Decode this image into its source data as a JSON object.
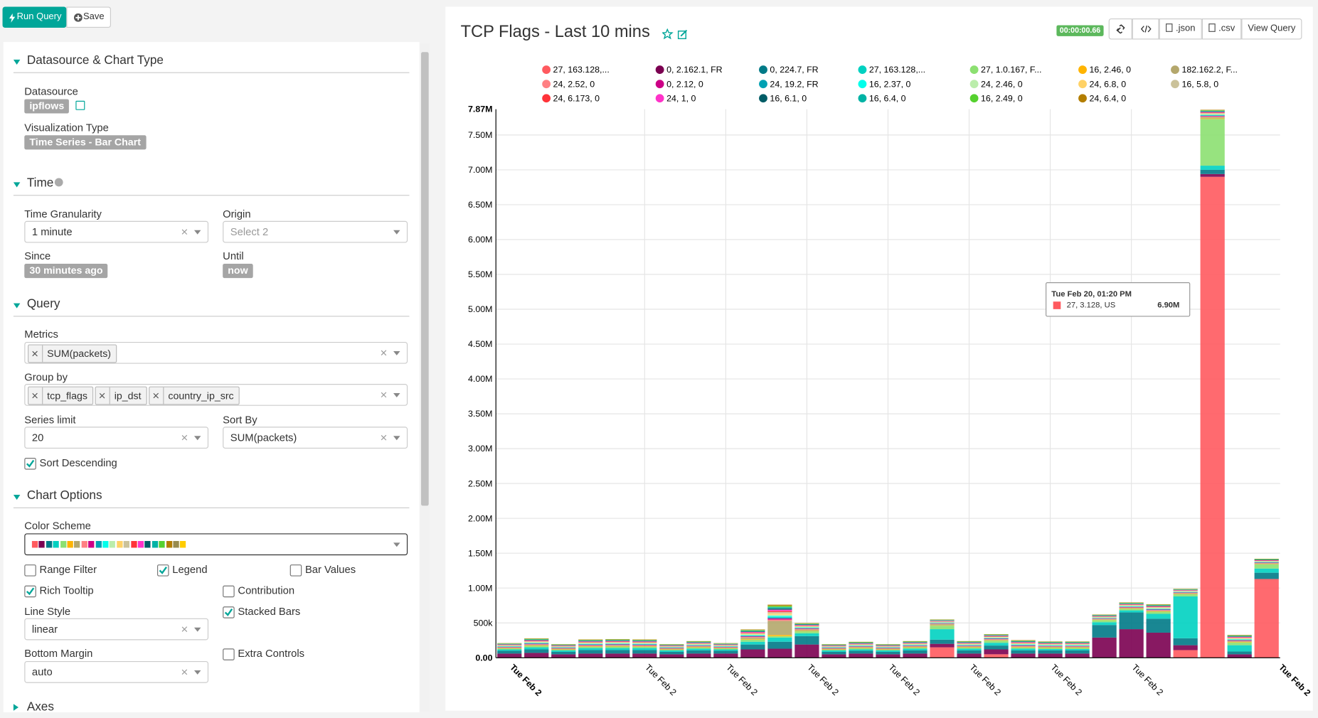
{
  "ui": {
    "toolbar": {
      "run": "Run Query",
      "save": "Save"
    },
    "datasource_section": {
      "title": "Datasource & Chart Type",
      "datasource_label": "Datasource",
      "datasource": "ipflows",
      "viz_label": "Visualization Type",
      "viz": "Time Series - Bar Chart"
    },
    "time_section": {
      "title": "Time",
      "granularity_label": "Time Granularity",
      "granularity": "1 minute",
      "origin_label": "Origin",
      "origin": "Select 2",
      "since_label": "Since",
      "since": "30 minutes ago",
      "until_label": "Until",
      "until": "now"
    },
    "query_section": {
      "title": "Query",
      "metrics_label": "Metrics",
      "metrics": [
        "SUM(packets)"
      ],
      "groupby_label": "Group by",
      "groupby": [
        "tcp_flags",
        "ip_dst",
        "country_ip_src"
      ],
      "series_limit_label": "Series limit",
      "series_limit": "20",
      "sort_by_label": "Sort By",
      "sort_by": "SUM(packets)",
      "sort_desc": {
        "label": "Sort Descending",
        "checked": true
      }
    },
    "options_section": {
      "title": "Chart Options",
      "color_scheme_label": "Color Scheme",
      "color_scheme": [
        "#ff5a5f",
        "#7b0051",
        "#007A87",
        "#00d1c1",
        "#8ce071",
        "#ffb400",
        "#b4a76c",
        "#ff8083",
        "#cc0086",
        "#00a1b3",
        "#00ffeb",
        "#bbedab",
        "#ffd266",
        "#cbc29a",
        "#ff3339",
        "#ff33c9",
        "#005c66",
        "#00b3a5",
        "#55d12e",
        "#b37e00",
        "#988b4e",
        "#ffcc00"
      ],
      "checkboxes": [
        {
          "label": "Range Filter",
          "checked": false
        },
        {
          "label": "Legend",
          "checked": true
        },
        {
          "label": "Bar Values",
          "checked": false
        },
        {
          "label": "Rich Tooltip",
          "checked": true
        },
        {
          "label": "Contribution",
          "checked": false
        },
        {
          "label": "Stacked Bars",
          "checked": true
        },
        {
          "label": "Extra Controls",
          "checked": false
        }
      ],
      "line_style_label": "Line Style",
      "line_style": "linear",
      "bottom_margin_label": "Bottom Margin",
      "bottom_margin": "auto"
    },
    "axes_section": {
      "title": "Axes"
    }
  },
  "header": {
    "title": "TCP Flags - Last 10 mins",
    "timer": "00:00:00.66",
    "buttons": [
      ".json",
      ".csv",
      "View Query"
    ]
  },
  "chart_data": {
    "type": "stacked_bar",
    "categories": [
      "Tue Feb 2",
      null,
      null,
      null,
      null,
      "Tue Feb 2",
      null,
      null,
      "Tue Feb 2",
      null,
      null,
      "Tue Feb 2",
      null,
      null,
      "Tue Feb 2",
      null,
      null,
      "Tue Feb 2",
      null,
      null,
      "Tue Feb 2",
      null,
      null,
      "Tue Feb 2",
      null,
      null,
      null,
      null,
      "Tue Feb 2"
    ],
    "ylim": [
      0,
      7870000
    ],
    "yticks": [
      {
        "value": 0,
        "label": "0.00"
      },
      {
        "value": 500000,
        "label": "500k"
      },
      {
        "value": 1000000,
        "label": "1.00M"
      },
      {
        "value": 1500000,
        "label": "1.50M"
      },
      {
        "value": 2000000,
        "label": "2.00M"
      },
      {
        "value": 2500000,
        "label": "2.50M"
      },
      {
        "value": 3000000,
        "label": "3.00M"
      },
      {
        "value": 3500000,
        "label": "3.50M"
      },
      {
        "value": 4000000,
        "label": "4.00M"
      },
      {
        "value": 4500000,
        "label": "4.50M"
      },
      {
        "value": 5000000,
        "label": "5.00M"
      },
      {
        "value": 5500000,
        "label": "5.50M"
      },
      {
        "value": 6000000,
        "label": "6.00M"
      },
      {
        "value": 6500000,
        "label": "6.50M"
      },
      {
        "value": 7000000,
        "label": "7.00M"
      },
      {
        "value": 7500000,
        "label": "7.50M"
      },
      {
        "value": 7870000,
        "label": "7.87M"
      }
    ],
    "grid": true,
    "tooltip": {
      "title": "Tue Feb 20, 01:20 PM",
      "name": "27, 3.128, US",
      "value": "6.90M"
    },
    "series": [
      {
        "name": "27, 163.128,...",
        "color": "#ff5a5f",
        "values": [
          0,
          0,
          0,
          0,
          0,
          0,
          0,
          0,
          0,
          0,
          0,
          0,
          0,
          0,
          0,
          0,
          150000,
          0,
          50000,
          0,
          0,
          0,
          0,
          0,
          0,
          110000,
          6900000,
          0,
          1130000
        ]
      },
      {
        "name": "0, 2.162.1, FR",
        "color": "#7b0051",
        "values": [
          60000,
          70000,
          50000,
          60000,
          60000,
          60000,
          50000,
          60000,
          60000,
          120000,
          130000,
          190000,
          50000,
          60000,
          50000,
          60000,
          50000,
          60000,
          70000,
          60000,
          60000,
          60000,
          290000,
          410000,
          360000,
          70000,
          40000,
          50000,
          0
        ]
      },
      {
        "name": "0, 224.7, FR",
        "color": "#007A87",
        "values": [
          40000,
          50000,
          35000,
          50000,
          50000,
          50000,
          35000,
          45000,
          40000,
          70000,
          100000,
          120000,
          35000,
          40000,
          35000,
          45000,
          60000,
          45000,
          55000,
          45000,
          45000,
          45000,
          180000,
          240000,
          200000,
          100000,
          60000,
          40000,
          90000
        ]
      },
      {
        "name": "27, 163.128,...",
        "color": "#00d1c1",
        "values": [
          20000,
          30000,
          20000,
          30000,
          30000,
          30000,
          20000,
          25000,
          20000,
          40000,
          60000,
          40000,
          20000,
          20000,
          20000,
          25000,
          150000,
          25000,
          40000,
          25000,
          20000,
          20000,
          40000,
          30000,
          70000,
          600000,
          60000,
          90000,
          60000
        ]
      },
      {
        "name": "27, 1.0.167, F...",
        "color": "#8ce071",
        "values": [
          10000,
          20000,
          10000,
          15000,
          20000,
          15000,
          10000,
          15000,
          10000,
          30000,
          20000,
          30000,
          10000,
          15000,
          10000,
          15000,
          50000,
          15000,
          30000,
          15000,
          15000,
          15000,
          30000,
          20000,
          30000,
          30000,
          670000,
          40000,
          60000
        ]
      },
      {
        "name": "16, 2.46, 0",
        "color": "#ffb400",
        "values": [
          5000,
          7000,
          5000,
          7000,
          7000,
          7000,
          5000,
          6000,
          5000,
          9000,
          18000,
          7000,
          5000,
          6000,
          5000,
          6000,
          5000,
          6000,
          6000,
          7000,
          6000,
          6000,
          5000,
          6000,
          7000,
          5000,
          8000,
          7000,
          5000
        ]
      },
      {
        "name": "182.162.2, F...",
        "color": "#b4a76c",
        "values": [
          10000,
          10000,
          10000,
          10000,
          10000,
          10000,
          10000,
          10000,
          10000,
          20000,
          200000,
          20000,
          10000,
          10000,
          10000,
          10000,
          20000,
          10000,
          10000,
          10000,
          10000,
          10000,
          10000,
          10000,
          10000,
          10000,
          20000,
          10000,
          10000
        ]
      },
      {
        "name": "24, 2.52, 0",
        "color": "#ff8083",
        "values": [
          5000,
          7000,
          5000,
          7000,
          7000,
          7000,
          5000,
          6000,
          5000,
          9000,
          18000,
          7000,
          5000,
          6000,
          5000,
          6000,
          5000,
          6000,
          6000,
          7000,
          6000,
          6000,
          5000,
          6000,
          7000,
          5000,
          8000,
          7000,
          5000
        ]
      },
      {
        "name": "0, 2.12, 0",
        "color": "#cc0086",
        "values": [
          5000,
          7000,
          5000,
          7000,
          7000,
          7000,
          5000,
          6000,
          5000,
          9000,
          18000,
          7000,
          5000,
          6000,
          5000,
          6000,
          5000,
          6000,
          6000,
          7000,
          6000,
          6000,
          5000,
          6000,
          7000,
          5000,
          8000,
          7000,
          5000
        ]
      },
      {
        "name": "24, 19.2, FR",
        "color": "#00a1b3",
        "values": [
          5000,
          7000,
          5000,
          7000,
          7000,
          7000,
          5000,
          6000,
          5000,
          9000,
          18000,
          7000,
          5000,
          6000,
          5000,
          6000,
          5000,
          6000,
          6000,
          7000,
          6000,
          6000,
          5000,
          6000,
          7000,
          5000,
          8000,
          7000,
          5000
        ]
      },
      {
        "name": "16, 2.37, 0",
        "color": "#00ffeb",
        "values": [
          5000,
          7000,
          5000,
          7000,
          7000,
          7000,
          5000,
          6000,
          5000,
          9000,
          18000,
          7000,
          5000,
          6000,
          5000,
          6000,
          5000,
          6000,
          6000,
          7000,
          6000,
          6000,
          5000,
          6000,
          7000,
          5000,
          8000,
          7000,
          5000
        ]
      },
      {
        "name": "24, 2.46, 0",
        "color": "#bbedab",
        "values": [
          5000,
          7000,
          5000,
          7000,
          7000,
          7000,
          5000,
          6000,
          5000,
          9000,
          18000,
          7000,
          5000,
          6000,
          5000,
          6000,
          5000,
          6000,
          6000,
          7000,
          6000,
          6000,
          5000,
          6000,
          7000,
          5000,
          8000,
          7000,
          5000
        ]
      },
      {
        "name": "24, 6.8, 0",
        "color": "#ffd266",
        "values": [
          5000,
          7000,
          5000,
          7000,
          7000,
          7000,
          5000,
          6000,
          5000,
          9000,
          18000,
          7000,
          5000,
          6000,
          5000,
          6000,
          5000,
          6000,
          6000,
          7000,
          6000,
          6000,
          5000,
          6000,
          7000,
          5000,
          8000,
          7000,
          5000
        ]
      },
      {
        "name": "16, 5.8, 0",
        "color": "#cbc29a",
        "values": [
          5000,
          7000,
          5000,
          7000,
          7000,
          7000,
          5000,
          6000,
          5000,
          9000,
          18000,
          7000,
          5000,
          6000,
          5000,
          6000,
          5000,
          6000,
          6000,
          7000,
          6000,
          6000,
          5000,
          6000,
          7000,
          5000,
          8000,
          7000,
          5000
        ]
      },
      {
        "name": "24, 6.173, 0",
        "color": "#ff3339",
        "values": [
          5000,
          7000,
          5000,
          7000,
          7000,
          7000,
          5000,
          6000,
          5000,
          9000,
          18000,
          7000,
          5000,
          6000,
          5000,
          6000,
          5000,
          6000,
          6000,
          7000,
          6000,
          6000,
          5000,
          6000,
          7000,
          5000,
          8000,
          7000,
          5000
        ]
      },
      {
        "name": "24, 1, 0",
        "color": "#ff33c9",
        "values": [
          5000,
          7000,
          5000,
          7000,
          7000,
          7000,
          5000,
          6000,
          5000,
          9000,
          18000,
          7000,
          5000,
          6000,
          5000,
          6000,
          5000,
          6000,
          6000,
          7000,
          6000,
          6000,
          5000,
          6000,
          7000,
          5000,
          8000,
          7000,
          5000
        ]
      },
      {
        "name": "16, 6.1, 0",
        "color": "#005c66",
        "values": [
          5000,
          7000,
          5000,
          7000,
          7000,
          7000,
          5000,
          6000,
          5000,
          9000,
          18000,
          7000,
          5000,
          6000,
          5000,
          6000,
          5000,
          6000,
          6000,
          7000,
          6000,
          6000,
          5000,
          6000,
          7000,
          5000,
          8000,
          7000,
          5000
        ]
      },
      {
        "name": "16, 6.4, 0",
        "color": "#00b3a5",
        "values": [
          5000,
          7000,
          5000,
          7000,
          7000,
          7000,
          5000,
          6000,
          5000,
          9000,
          18000,
          7000,
          5000,
          6000,
          5000,
          6000,
          5000,
          6000,
          6000,
          7000,
          6000,
          6000,
          5000,
          6000,
          7000,
          5000,
          8000,
          7000,
          5000
        ]
      },
      {
        "name": "16, 2.49, 0",
        "color": "#55d12e",
        "values": [
          5000,
          7000,
          5000,
          7000,
          7000,
          7000,
          5000,
          6000,
          5000,
          9000,
          18000,
          7000,
          5000,
          6000,
          5000,
          6000,
          5000,
          6000,
          6000,
          7000,
          6000,
          6000,
          5000,
          6000,
          7000,
          5000,
          8000,
          7000,
          5000
        ]
      },
      {
        "name": "24, 6.4, 0",
        "color": "#b37e00",
        "values": [
          5000,
          7000,
          5000,
          7000,
          7000,
          7000,
          5000,
          6000,
          5000,
          9000,
          18000,
          7000,
          5000,
          6000,
          5000,
          6000,
          5000,
          6000,
          6000,
          7000,
          6000,
          6000,
          5000,
          6000,
          7000,
          5000,
          8000,
          7000,
          5000
        ]
      }
    ]
  }
}
